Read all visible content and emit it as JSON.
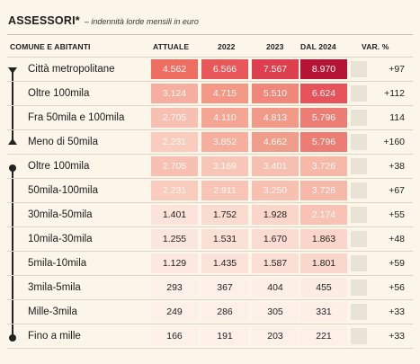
{
  "title": "ASSESSORI*",
  "subtitle": "– indennità lorde mensili in euro",
  "header": {
    "label": "COMUNE E ABITANTI",
    "cols": [
      "ATTUALE",
      "2022",
      "2023",
      "DAL 2024"
    ],
    "var": "VAR. %"
  },
  "rows": [
    {
      "label": "Città metropolitane",
      "values": [
        "4.562",
        "6.566",
        "7.567",
        "8.970"
      ],
      "var": "+97",
      "var_pct": 97,
      "colors": [
        "#ee6f62",
        "#e8575a",
        "#dd3f4e",
        "#b61434"
      ],
      "text_light": [
        true,
        true,
        true,
        true
      ]
    },
    {
      "label": "Oltre 100mila",
      "values": [
        "3.124",
        "4.715",
        "5.510",
        "6.624"
      ],
      "var": "+112",
      "var_pct": 112,
      "colors": [
        "#f6aea0",
        "#f39885",
        "#f0877a",
        "#e6535a"
      ],
      "text_light": [
        true,
        true,
        true,
        true
      ]
    },
    {
      "label": "Fra 50mila e 100mila",
      "values": [
        "2.705",
        "4.110",
        "4.813",
        "5.796"
      ],
      "var": "114",
      "var_pct": 114,
      "colors": [
        "#f8c0b2",
        "#f4a593",
        "#f29a88",
        "#ec7d74"
      ],
      "text_light": [
        true,
        true,
        true,
        true
      ]
    },
    {
      "label": "Meno di 50mila",
      "values": [
        "2.231",
        "3.852",
        "4.662",
        "5.796"
      ],
      "var": "+160",
      "var_pct": 160,
      "colors": [
        "#f9ccbd",
        "#f6ae9e",
        "#f19d8b",
        "#ec7d74"
      ],
      "text_light": [
        true,
        true,
        true,
        true
      ]
    },
    {
      "label": "Oltre 100mila",
      "values": [
        "2.705",
        "3.169",
        "3.401",
        "3.726"
      ],
      "var": "+38",
      "var_pct": 38,
      "colors": [
        "#f8c0b2",
        "#f8c6b8",
        "#f7bfaf",
        "#f6b8a8"
      ],
      "text_light": [
        true,
        true,
        true,
        true
      ]
    },
    {
      "label": "50mila-100mila",
      "values": [
        "2.231",
        "2.911",
        "3.250",
        "3.726"
      ],
      "var": "+67",
      "var_pct": 67,
      "colors": [
        "#f9ccbd",
        "#f8c4b6",
        "#f7c0b1",
        "#f6b8a8"
      ],
      "text_light": [
        true,
        true,
        true,
        true
      ]
    },
    {
      "label": "30mila-50mila",
      "values": [
        "1.401",
        "1.752",
        "1.928",
        "2.174"
      ],
      "var": "+55",
      "var_pct": 55,
      "colors": [
        "#fbe3d9",
        "#fadbd0",
        "#fad6ca",
        "#f8c3b4"
      ],
      "text_light": [
        false,
        false,
        false,
        true
      ]
    },
    {
      "label": "10mila-30mila",
      "values": [
        "1.255",
        "1.531",
        "1.670",
        "1.863"
      ],
      "var": "+48",
      "var_pct": 48,
      "colors": [
        "#fbe6dd",
        "#fbe0d6",
        "#fadcd2",
        "#fad5c9"
      ],
      "text_light": [
        false,
        false,
        false,
        false
      ]
    },
    {
      "label": "5mila-10mila",
      "values": [
        "1.129",
        "1.435",
        "1.587",
        "1.801"
      ],
      "var": "+59",
      "var_pct": 59,
      "colors": [
        "#fce8e0",
        "#fbe2d8",
        "#fbded4",
        "#fad7cc"
      ],
      "text_light": [
        false,
        false,
        false,
        false
      ]
    },
    {
      "label": "3mila-5mila",
      "values": [
        "293",
        "367",
        "404",
        "455"
      ],
      "var": "+56",
      "var_pct": 56,
      "colors": [
        "#fdf0e8",
        "#fdf0e8",
        "#fdeee6",
        "#fdece4"
      ],
      "text_light": [
        false,
        false,
        false,
        false
      ]
    },
    {
      "label": "Mille-3mila",
      "values": [
        "249",
        "286",
        "305",
        "331"
      ],
      "var": "+33",
      "var_pct": 33,
      "colors": [
        "#fdf0e8",
        "#fdf0e8",
        "#fdf0e8",
        "#fdeee6"
      ],
      "text_light": [
        false,
        false,
        false,
        false
      ]
    },
    {
      "label": "Fino a mille",
      "values": [
        "166",
        "191",
        "203",
        "221"
      ],
      "var": "+33",
      "var_pct": 33,
      "colors": [
        "#fdf1ea",
        "#fdf1ea",
        "#fdf0e8",
        "#fdf0e8"
      ],
      "text_light": [
        false,
        false,
        false,
        false
      ]
    }
  ]
}
